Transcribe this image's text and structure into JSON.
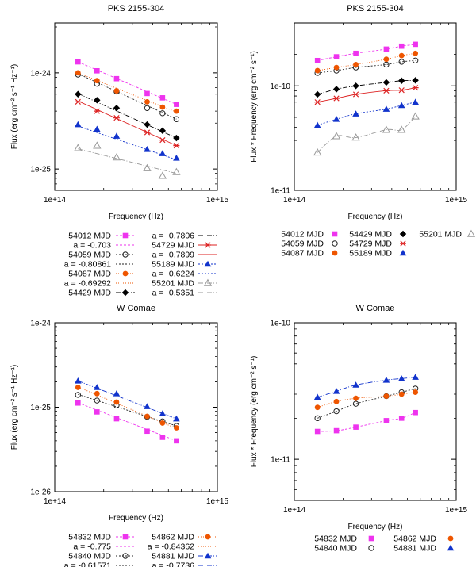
{
  "chart_data": [
    {
      "type": "line",
      "title": "PKS 2155-304",
      "xlabel": "Frequency (Hz)",
      "ylabel": "Flux (erg cm⁻² s⁻¹ Hz⁻¹)",
      "xscale": "log",
      "yscale": "log",
      "xlim": [
        100000000000000.0,
        1000000000000000.0
      ],
      "ylim": [
        6e-26,
        3.3e-24
      ],
      "xticks": [
        {
          "v": 100000000000000.0,
          "label": "1e+14"
        },
        {
          "v": 1000000000000000.0,
          "label": "1e+15"
        }
      ],
      "yticks": [
        {
          "v": 1e-24,
          "label": "1e-24"
        },
        {
          "v": 1e-25,
          "label": "1e-25"
        }
      ],
      "x": [
        139000000000000.0,
        182000000000000.0,
        240000000000000.0,
        370000000000000.0,
        460000000000000.0,
        560000000000000.0
      ],
      "series": [
        {
          "name": "54012 MJD",
          "fit_label": "a = -0.703",
          "color": "#ee33ee",
          "marker": "square",
          "dash": "3,2",
          "values": [
            1.3e-24,
            1.05e-24,
            8.7e-25,
            6.1e-25,
            5.5e-25,
            4.7e-25
          ],
          "fit": [
            1.3e-24,
            4.7e-25
          ]
        },
        {
          "name": "54059 MJD",
          "fit_label": "a = -0.80861",
          "color": "#222222",
          "marker": "circle-open",
          "dash": "2,2",
          "values": [
            9.6e-25,
            7.7e-25,
            6.4e-25,
            4.3e-25,
            3.8e-25,
            3.3e-25
          ],
          "fit": [
            9.8e-25,
            3.3e-25
          ]
        },
        {
          "name": "54087 MJD",
          "fit_label": "a = -0.69292",
          "color": "#ee5500",
          "marker": "circle",
          "dash": "1,2",
          "values": [
            1e-24,
            8.3e-25,
            6.5e-25,
            5e-25,
            4.4e-25,
            4e-25
          ],
          "fit": [
            1e-24,
            3.9e-25
          ]
        },
        {
          "name": "54429 MJD",
          "fit_label": "a = -0.7806",
          "color": "#000000",
          "marker": "diamond",
          "dash": "6,2,1,2",
          "values": [
            6e-25,
            5.2e-25,
            4.3e-25,
            2.9e-25,
            2.5e-25,
            2.1e-25
          ],
          "fit": [
            6.1e-25,
            2.1e-25
          ]
        },
        {
          "name": "54729 MJD",
          "fit_label": "a = -0.7899",
          "color": "#dd2222",
          "marker": "x",
          "dash": "",
          "values": [
            5e-25,
            4e-25,
            3.4e-25,
            2.4e-25,
            2e-25,
            1.75e-25
          ],
          "fit": [
            5.1e-25,
            1.75e-25
          ]
        },
        {
          "name": "55189 MJD",
          "fit_label": "a = -0.6224",
          "color": "#1133cc",
          "marker": "triangle",
          "dash": "2,2",
          "values": [
            2.9e-25,
            2.6e-25,
            2.2e-25,
            1.6e-25,
            1.45e-25,
            1.3e-25
          ],
          "fit": [
            2.8e-25,
            1.25e-25
          ]
        },
        {
          "name": "55201 MJD",
          "fit_label": "a = -0.5351",
          "color": "#999999",
          "marker": "triangle-open",
          "dash": "6,2,1,2",
          "values": [
            1.65e-25,
            1.75e-25,
            1.32e-25,
            1.02e-25,
            8.5e-26,
            9.3e-26
          ],
          "fit": [
            1.62e-25,
            9e-26
          ]
        }
      ]
    },
    {
      "type": "line",
      "title": "PKS 2155-304",
      "xlabel": "Frequency (Hz)",
      "ylabel": "Flux * Frequency  (erg cm⁻² s⁻¹)",
      "xscale": "log",
      "yscale": "log",
      "xlim": [
        100000000000000.0,
        1000000000000000.0
      ],
      "ylim": [
        1e-11,
        4e-10
      ],
      "xticks": [
        {
          "v": 100000000000000.0,
          "label": "1e+14"
        },
        {
          "v": 1000000000000000.0,
          "label": "1e+15"
        }
      ],
      "yticks": [
        {
          "v": 1e-10,
          "label": "1e-10"
        },
        {
          "v": 1e-11,
          "label": "1e-11"
        }
      ],
      "x": [
        139000000000000.0,
        182000000000000.0,
        240000000000000.0,
        370000000000000.0,
        460000000000000.0,
        560000000000000.0
      ],
      "series": [
        {
          "name": "54012 MJD",
          "color": "#ee33ee",
          "marker": "square",
          "dash": "3,2",
          "values": [
            1.75e-10,
            1.9e-10,
            2.05e-10,
            2.25e-10,
            2.4e-10,
            2.5e-10
          ]
        },
        {
          "name": "54059 MJD",
          "color": "#222222",
          "marker": "circle-open",
          "dash": "2,2",
          "values": [
            1.33e-10,
            1.4e-10,
            1.5e-10,
            1.6e-10,
            1.7e-10,
            1.75e-10
          ]
        },
        {
          "name": "54087 MJD",
          "color": "#ee5500",
          "marker": "circle",
          "dash": "1,2",
          "values": [
            1.4e-10,
            1.5e-10,
            1.6e-10,
            1.8e-10,
            1.95e-10,
            2.05e-10
          ]
        },
        {
          "name": "54429 MJD",
          "color": "#000000",
          "marker": "diamond",
          "dash": "6,2,1,2",
          "values": [
            8.3e-11,
            9.3e-11,
            1e-10,
            1.08e-10,
            1.12e-10,
            1.13e-10
          ]
        },
        {
          "name": "54729 MJD",
          "color": "#dd2222",
          "marker": "x",
          "dash": "",
          "values": [
            7e-11,
            7.6e-11,
            8.3e-11,
            9e-11,
            9.1e-11,
            9.6e-11
          ]
        },
        {
          "name": "55189 MJD",
          "color": "#1133cc",
          "marker": "triangle",
          "dash": "2,2",
          "values": [
            4.2e-11,
            4.8e-11,
            5.4e-11,
            6e-11,
            6.5e-11,
            7e-11
          ]
        },
        {
          "name": "55201 MJD",
          "color": "#999999",
          "marker": "triangle-open",
          "dash": "6,2,1,2",
          "values": [
            2.3e-11,
            3.3e-11,
            3.2e-11,
            3.8e-11,
            3.8e-11,
            5.1e-11
          ]
        }
      ]
    },
    {
      "type": "line",
      "title": "W Comae",
      "xlabel": "Frequency (Hz)",
      "ylabel": "Flux (erg cm⁻² s⁻¹ Hz⁻¹)",
      "xscale": "log",
      "yscale": "log",
      "xlim": [
        100000000000000.0,
        1000000000000000.0
      ],
      "ylim": [
        1e-26,
        1e-24
      ],
      "xticks": [
        {
          "v": 100000000000000.0,
          "label": "1e+14"
        },
        {
          "v": 1000000000000000.0,
          "label": "1e+15"
        }
      ],
      "yticks": [
        {
          "v": 1e-24,
          "label": "1e-24"
        },
        {
          "v": 1e-25,
          "label": "1e-25"
        },
        {
          "v": 1e-26,
          "label": "1e-26"
        }
      ],
      "x": [
        139000000000000.0,
        182000000000000.0,
        240000000000000.0,
        370000000000000.0,
        460000000000000.0,
        560000000000000.0
      ],
      "series": [
        {
          "name": "54832 MJD",
          "fit_label": "a = -0.775",
          "color": "#ee33ee",
          "marker": "square",
          "dash": "3,2",
          "values": [
            1.12e-25,
            8.8e-26,
            7.3e-26,
            5.2e-26,
            4.4e-26,
            4e-26
          ],
          "fit": [
            1.13e-25,
            4e-26
          ]
        },
        {
          "name": "54840 MJD",
          "fit_label": "a = -0.61571",
          "color": "#222222",
          "marker": "circle-open",
          "dash": "2,2",
          "values": [
            1.4e-25,
            1.2e-25,
            1.05e-25,
            7.7e-26,
            6.8e-26,
            6e-26
          ],
          "fit": [
            1.42e-25,
            6e-26
          ]
        },
        {
          "name": "54862 MJD",
          "fit_label": "a = -0.84362",
          "color": "#ee5500",
          "marker": "circle",
          "dash": "1,2",
          "values": [
            1.72e-25,
            1.45e-25,
            1.15e-25,
            7.8e-26,
            6.5e-26,
            5.7e-26
          ],
          "fit": [
            1.74e-25,
            5.6e-26
          ]
        },
        {
          "name": "54881 MJD",
          "fit_label": "a = -0.7736",
          "color": "#1133cc",
          "marker": "triangle",
          "dash": "6,2,1,2",
          "values": [
            2.05e-25,
            1.72e-25,
            1.45e-25,
            1.02e-25,
            8.4e-26,
            7.3e-26
          ],
          "fit": [
            2.05e-25,
            7.3e-26
          ]
        }
      ]
    },
    {
      "type": "line",
      "title": "W Comae",
      "xlabel": "Frequency (Hz)",
      "ylabel": "Flux * Frequency  (erg cm⁻² s⁻¹)",
      "xscale": "log",
      "yscale": "log",
      "xlim": [
        100000000000000.0,
        1000000000000000.0
      ],
      "ylim": [
        5e-12,
        1e-10
      ],
      "xticks": [
        {
          "v": 100000000000000.0,
          "label": "1e+14"
        },
        {
          "v": 1000000000000000.0,
          "label": "1e+15"
        }
      ],
      "yticks": [
        {
          "v": 1e-10,
          "label": "1e-10"
        },
        {
          "v": 1e-11,
          "label": "1e-11"
        }
      ],
      "x": [
        139000000000000.0,
        182000000000000.0,
        240000000000000.0,
        370000000000000.0,
        460000000000000.0,
        560000000000000.0
      ],
      "series": [
        {
          "name": "54832 MJD",
          "color": "#ee33ee",
          "marker": "square",
          "dash": "3,2",
          "values": [
            1.6e-11,
            1.62e-11,
            1.72e-11,
            1.92e-11,
            2e-11,
            2.2e-11
          ]
        },
        {
          "name": "54840 MJD",
          "color": "#222222",
          "marker": "circle-open",
          "dash": "2,2",
          "values": [
            2e-11,
            2.25e-11,
            2.55e-11,
            2.9e-11,
            3.1e-11,
            3.3e-11
          ]
        },
        {
          "name": "54862 MJD",
          "color": "#ee5500",
          "marker": "circle",
          "dash": "1,2",
          "values": [
            2.4e-11,
            2.65e-11,
            2.8e-11,
            2.9e-11,
            3e-11,
            3.1e-11
          ]
        },
        {
          "name": "54881 MJD",
          "color": "#1133cc",
          "marker": "triangle",
          "dash": "6,2,1,2",
          "values": [
            2.85e-11,
            3.15e-11,
            3.5e-11,
            3.8e-11,
            3.9e-11,
            4e-11
          ]
        }
      ]
    }
  ]
}
